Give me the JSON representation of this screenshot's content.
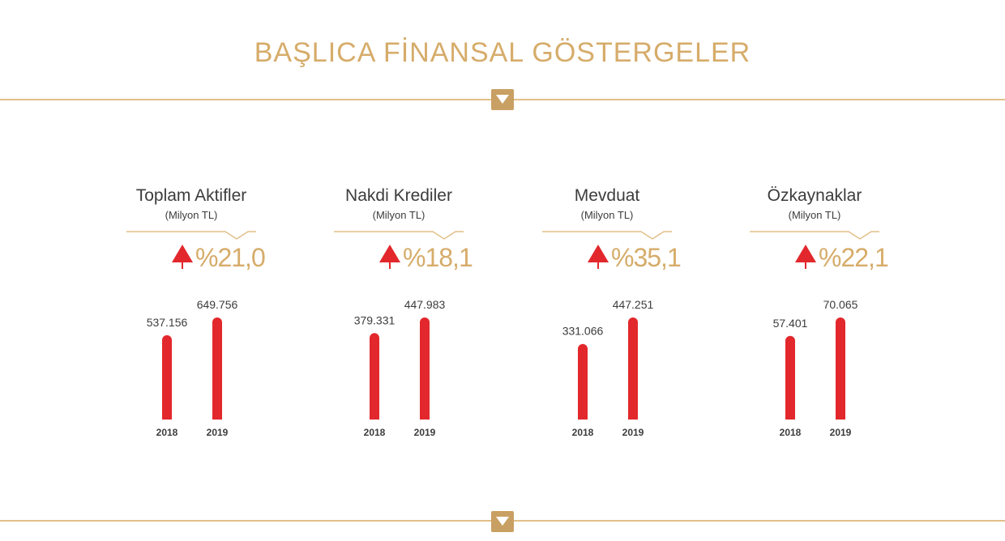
{
  "header": {
    "title": "BAŞLICA FİNANSAL GÖSTERGELER"
  },
  "colors": {
    "gold": "#d6ac6a",
    "gold_line": "#e2bf89",
    "marker": "#c9a063",
    "bar": "#e2282c",
    "text": "#3c3c3c"
  },
  "icons": {
    "section_marker": "chevron-down-icon",
    "change_arrow": "up-arrow-icon"
  },
  "chart_data": [
    {
      "type": "bar",
      "title": "Toplam Aktifler",
      "unit": "(Milyon TL)",
      "change": "%21,0",
      "categories": [
        "2018",
        "2019"
      ],
      "values": [
        537156,
        649756
      ],
      "value_labels": [
        "537.156",
        "649.756"
      ]
    },
    {
      "type": "bar",
      "title": "Nakdi Krediler",
      "unit": "(Milyon TL)",
      "change": "%18,1",
      "categories": [
        "2018",
        "2019"
      ],
      "values": [
        379331,
        447983
      ],
      "value_labels": [
        "379.331",
        "447.983"
      ]
    },
    {
      "type": "bar",
      "title": "Mevduat",
      "unit": "(Milyon TL)",
      "change": "%35,1",
      "categories": [
        "2018",
        "2019"
      ],
      "values": [
        331066,
        447251
      ],
      "value_labels": [
        "331.066",
        "447.251"
      ]
    },
    {
      "type": "bar",
      "title": "Özkaynaklar",
      "unit": "(Milyon TL)",
      "change": "%22,1",
      "categories": [
        "2018",
        "2019"
      ],
      "values": [
        57401,
        70065
      ],
      "value_labels": [
        "57.401",
        "70.065"
      ]
    }
  ]
}
